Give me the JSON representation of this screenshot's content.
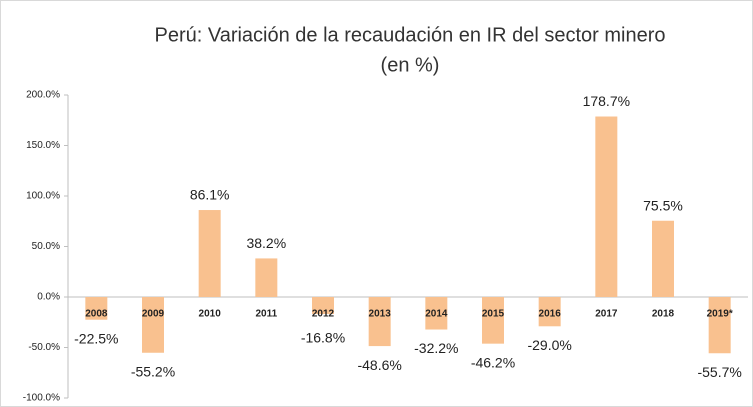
{
  "chart_data": {
    "type": "bar",
    "title": "Perú: Variación de la recaudación en IR del sector minero",
    "subtitle": "(en %)",
    "categories": [
      "2008",
      "2009",
      "2010",
      "2011",
      "2012",
      "2013",
      "2014",
      "2015",
      "2016",
      "2017",
      "2018",
      "2019*"
    ],
    "values": [
      -22.5,
      -55.2,
      86.1,
      38.2,
      -16.8,
      -48.6,
      -32.2,
      -46.2,
      -29.0,
      178.7,
      75.5,
      -55.7
    ],
    "value_labels": [
      "-22.5%",
      "-55.2%",
      "86.1%",
      "38.2%",
      "-16.8%",
      "-48.6%",
      "-32.2%",
      "-46.2%",
      "-29.0%",
      "178.7%",
      "75.5%",
      "-55.7%"
    ],
    "color": "#f9c18f",
    "ylim": [
      -100,
      200
    ],
    "yticks": [
      {
        "value": -100,
        "label": "-100.0%"
      },
      {
        "value": -50,
        "label": "-50.0%"
      },
      {
        "value": 0,
        "label": "0.0%"
      },
      {
        "value": 50,
        "label": "50.0%"
      },
      {
        "value": 100,
        "label": "100.0%"
      },
      {
        "value": 150,
        "label": "150.0%"
      },
      {
        "value": 200,
        "label": "200.0%"
      }
    ],
    "grid": false
  }
}
